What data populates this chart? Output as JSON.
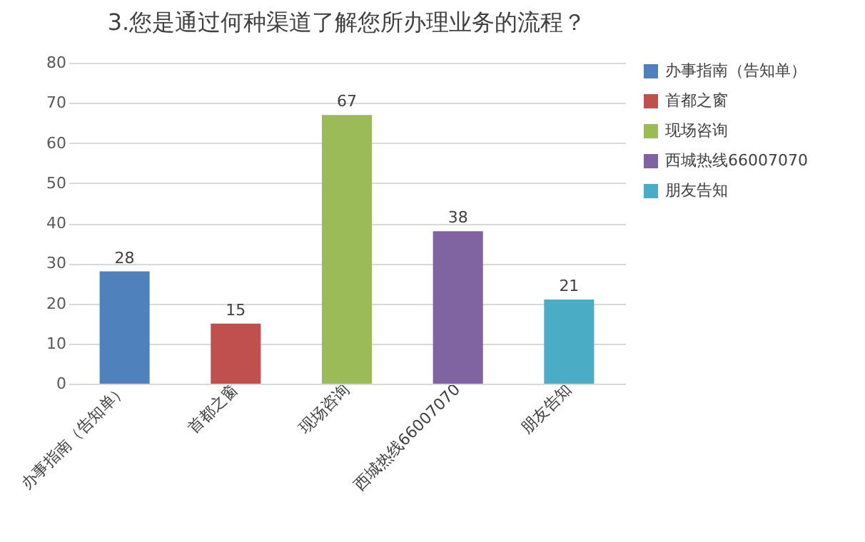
{
  "chart_data": {
    "type": "bar",
    "title": "3.您是通过何种渠道了解您所办理业务的流程？",
    "categories": [
      "办事指南（告知单）",
      "首都之窗",
      "现场咨询",
      "西城热线66007070",
      "朋友告知"
    ],
    "series": [
      {
        "name": "办事指南（告知单）",
        "color": "#4f81bd",
        "values": [
          28,
          null,
          null,
          null,
          null
        ]
      },
      {
        "name": "首都之窗",
        "color": "#c0504d",
        "values": [
          null,
          15,
          null,
          null,
          null
        ]
      },
      {
        "name": "现场咨询",
        "color": "#9bbb59",
        "values": [
          null,
          null,
          67,
          null,
          null
        ]
      },
      {
        "name": "西城热线66007070",
        "color": "#8064a2",
        "values": [
          null,
          null,
          null,
          38,
          null
        ]
      },
      {
        "name": "朋友告知",
        "color": "#4bacc6",
        "values": [
          null,
          null,
          null,
          null,
          21
        ]
      }
    ],
    "ylim": [
      0,
      80
    ],
    "yticks": [
      0,
      10,
      20,
      30,
      40,
      50,
      60,
      70,
      80
    ],
    "grid": "y",
    "legend": "right",
    "data_labels": true
  }
}
